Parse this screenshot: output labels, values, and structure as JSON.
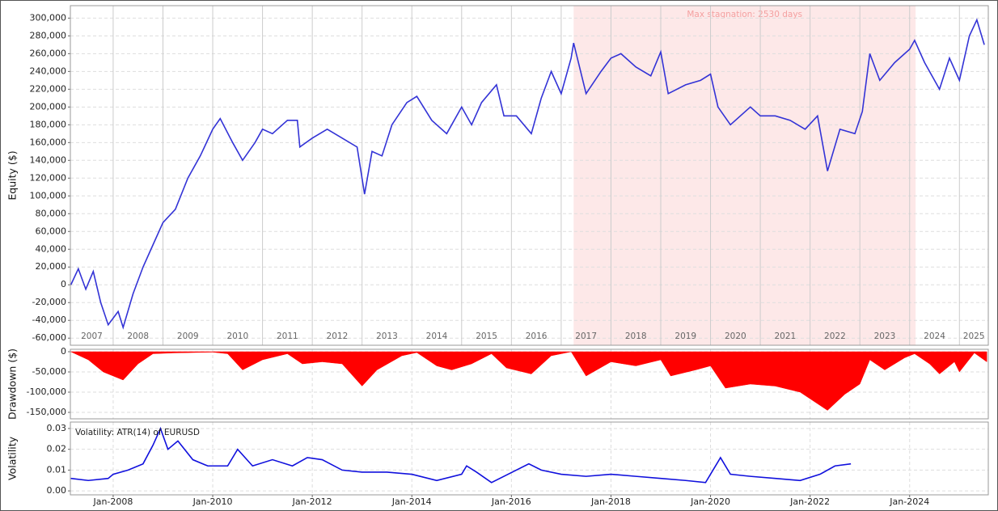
{
  "chart_data": [
    {
      "type": "line",
      "y_label": "Equity ($)",
      "color": "#3333d6",
      "xlim": [
        2007.14,
        2025.58
      ],
      "ylim": [
        -68000,
        314000
      ],
      "yticks": [
        {
          "value": -60000,
          "label": "-60,000"
        },
        {
          "value": -40000,
          "label": "-40,000"
        },
        {
          "value": -20000,
          "label": "-20,000"
        },
        0,
        {
          "value": 20000,
          "label": "20,000"
        },
        {
          "value": 40000,
          "label": "40,000"
        },
        {
          "value": 60000,
          "label": "60,000"
        },
        {
          "value": 80000,
          "label": "80,000"
        },
        {
          "value": 100000,
          "label": "100,000"
        },
        {
          "value": 120000,
          "label": "120,000"
        },
        {
          "value": 140000,
          "label": "140,000"
        },
        {
          "value": 160000,
          "label": "160,000"
        },
        {
          "value": 180000,
          "label": "180,000"
        },
        {
          "value": 200000,
          "label": "200,000"
        },
        {
          "value": 220000,
          "label": "220,000"
        },
        {
          "value": 240000,
          "label": "240,000"
        },
        {
          "value": 260000,
          "label": "260,000"
        },
        {
          "value": 280000,
          "label": "280,000"
        },
        {
          "value": 300000,
          "label": "300,000"
        }
      ],
      "grid": true,
      "year_labels": [
        "2007",
        "2008",
        "2009",
        "2010",
        "2011",
        "2012",
        "2013",
        "2014",
        "2015",
        "2016",
        "2017",
        "2018",
        "2019",
        "2020",
        "2021",
        "2022",
        "2023",
        "2024",
        "2025"
      ],
      "year_bounds": [
        2008,
        2009,
        2010,
        2011,
        2012,
        2013,
        2014,
        2015,
        2016,
        2017,
        2018,
        2019,
        2020,
        2021,
        2022,
        2023,
        2024,
        2025
      ],
      "stagnation": {
        "start": 2017.25,
        "end": 2024.12,
        "label": "Max stagnation: 2530 days",
        "color": "#fde8e8"
      },
      "x": [
        2007.15,
        2007.3,
        2007.45,
        2007.6,
        2007.75,
        2007.9,
        2008.1,
        2008.2,
        2008.4,
        2008.6,
        2008.8,
        2009.0,
        2009.25,
        2009.5,
        2009.75,
        2010.0,
        2010.15,
        2010.4,
        2010.6,
        2010.85,
        2011.0,
        2011.2,
        2011.5,
        2011.7,
        2011.75,
        2012.0,
        2012.3,
        2012.6,
        2012.9,
        2013.05,
        2013.2,
        2013.4,
        2013.6,
        2013.9,
        2014.1,
        2014.4,
        2014.7,
        2015.0,
        2015.2,
        2015.4,
        2015.7,
        2015.85,
        2016.1,
        2016.4,
        2016.6,
        2016.8,
        2017.0,
        2017.2,
        2017.25,
        2017.5,
        2017.8,
        2018.0,
        2018.2,
        2018.5,
        2018.8,
        2019.0,
        2019.15,
        2019.5,
        2019.8,
        2020.0,
        2020.15,
        2020.4,
        2020.8,
        2021.0,
        2021.3,
        2021.6,
        2021.9,
        2022.15,
        2022.35,
        2022.6,
        2022.9,
        2023.05,
        2023.2,
        2023.4,
        2023.7,
        2024.0,
        2024.1,
        2024.3,
        2024.6,
        2024.8,
        2025.0,
        2025.2,
        2025.35,
        2025.5
      ],
      "values": [
        0,
        18000,
        -5000,
        15000,
        -20000,
        -45000,
        -30000,
        -48000,
        -10000,
        20000,
        45000,
        70000,
        85000,
        120000,
        145000,
        175000,
        187000,
        160000,
        140000,
        160000,
        175000,
        170000,
        185000,
        185000,
        155000,
        165000,
        175000,
        165000,
        155000,
        102000,
        150000,
        145000,
        180000,
        205000,
        212000,
        185000,
        170000,
        200000,
        180000,
        205000,
        225000,
        190000,
        190000,
        170000,
        210000,
        240000,
        215000,
        255000,
        272000,
        215000,
        240000,
        255000,
        260000,
        245000,
        235000,
        262000,
        215000,
        225000,
        230000,
        237000,
        200000,
        180000,
        200000,
        190000,
        190000,
        185000,
        175000,
        190000,
        128000,
        175000,
        170000,
        195000,
        260000,
        230000,
        250000,
        265000,
        275000,
        250000,
        220000,
        255000,
        230000,
        280000,
        298000,
        270000
      ]
    },
    {
      "type": "area",
      "y_label": "Drawdown ($)",
      "color": "#ff0000",
      "xlim": [
        2007.14,
        2025.58
      ],
      "ylim": [
        -166000,
        6000
      ],
      "yticks": [
        {
          "value": -150000,
          "label": "-150,000"
        },
        {
          "value": -100000,
          "label": "-100,000"
        },
        {
          "value": -50000,
          "label": "-50,000"
        },
        0
      ],
      "grid": true,
      "x": [
        2007.15,
        2007.5,
        2007.8,
        2008.2,
        2008.5,
        2008.8,
        2009.2,
        2009.6,
        2010.0,
        2010.3,
        2010.6,
        2011.0,
        2011.5,
        2011.8,
        2012.2,
        2012.6,
        2013.0,
        2013.3,
        2013.8,
        2014.1,
        2014.5,
        2014.8,
        2015.2,
        2015.6,
        2015.9,
        2016.4,
        2016.8,
        2017.2,
        2017.5,
        2018.0,
        2018.5,
        2019.0,
        2019.2,
        2019.7,
        2020.0,
        2020.3,
        2020.8,
        2021.3,
        2021.8,
        2022.35,
        2022.7,
        2023.0,
        2023.2,
        2023.5,
        2023.9,
        2024.1,
        2024.4,
        2024.6,
        2024.9,
        2025.0,
        2025.3,
        2025.55
      ],
      "values": [
        0,
        -20000,
        -50000,
        -70000,
        -30000,
        -5000,
        -3000,
        -2000,
        -1000,
        -5000,
        -45000,
        -20000,
        -5000,
        -30000,
        -25000,
        -30000,
        -85000,
        -45000,
        -10000,
        -2000,
        -35000,
        -45000,
        -30000,
        -5000,
        -40000,
        -55000,
        -10000,
        0,
        -60000,
        -25000,
        -35000,
        -20000,
        -60000,
        -45000,
        -35000,
        -90000,
        -80000,
        -85000,
        -100000,
        -145000,
        -105000,
        -80000,
        -20000,
        -45000,
        -15000,
        -5000,
        -30000,
        -55000,
        -25000,
        -50000,
        -3000,
        -25000
      ]
    },
    {
      "type": "line",
      "y_label": "Volatility",
      "annotation": "Volatility: ATR(14) of EURUSD",
      "color": "#1010dd",
      "xlim": [
        2007.14,
        2025.58
      ],
      "ylim": [
        -0.0019,
        0.0331
      ],
      "yticks": [
        {
          "value": 0,
          "label": "0.00"
        },
        0.01,
        0.02,
        0.03
      ],
      "xticks": [
        {
          "value": 2008,
          "label": "Jan-2008"
        },
        {
          "value": 2010,
          "label": "Jan-2010"
        },
        {
          "value": 2012,
          "label": "Jan-2012"
        },
        {
          "value": 2014,
          "label": "Jan-2014"
        },
        {
          "value": 2016,
          "label": "Jan-2016"
        },
        {
          "value": 2018,
          "label": "Jan-2018"
        },
        {
          "value": 2020,
          "label": "Jan-2020"
        },
        {
          "value": 2022,
          "label": "Jan-2022"
        },
        {
          "value": 2024,
          "label": "Jan-2024"
        }
      ],
      "grid": true,
      "x": [
        2007.15,
        2007.5,
        2007.9,
        2008.0,
        2008.3,
        2008.6,
        2008.8,
        2008.95,
        2009.1,
        2009.3,
        2009.6,
        2009.9,
        2010.3,
        2010.5,
        2010.8,
        2011.2,
        2011.6,
        2011.9,
        2012.2,
        2012.6,
        2013.0,
        2013.5,
        2014.0,
        2014.5,
        2015.0,
        2015.1,
        2015.3,
        2015.6,
        2016.35,
        2016.6,
        2017.0,
        2017.5,
        2018.0,
        2018.5,
        2019.0,
        2019.5,
        2019.9,
        2020.2,
        2020.4,
        2020.8,
        2021.3,
        2021.8,
        2022.2,
        2022.5,
        2022.82
      ],
      "values": [
        0.006,
        0.005,
        0.006,
        0.008,
        0.01,
        0.013,
        0.022,
        0.03,
        0.02,
        0.024,
        0.015,
        0.012,
        0.012,
        0.02,
        0.012,
        0.015,
        0.012,
        0.016,
        0.015,
        0.01,
        0.009,
        0.009,
        0.008,
        0.005,
        0.008,
        0.012,
        0.009,
        0.004,
        0.013,
        0.01,
        0.008,
        0.007,
        0.008,
        0.007,
        0.006,
        0.005,
        0.004,
        0.016,
        0.008,
        0.007,
        0.006,
        0.005,
        0.008,
        0.012,
        0.013
      ]
    }
  ]
}
